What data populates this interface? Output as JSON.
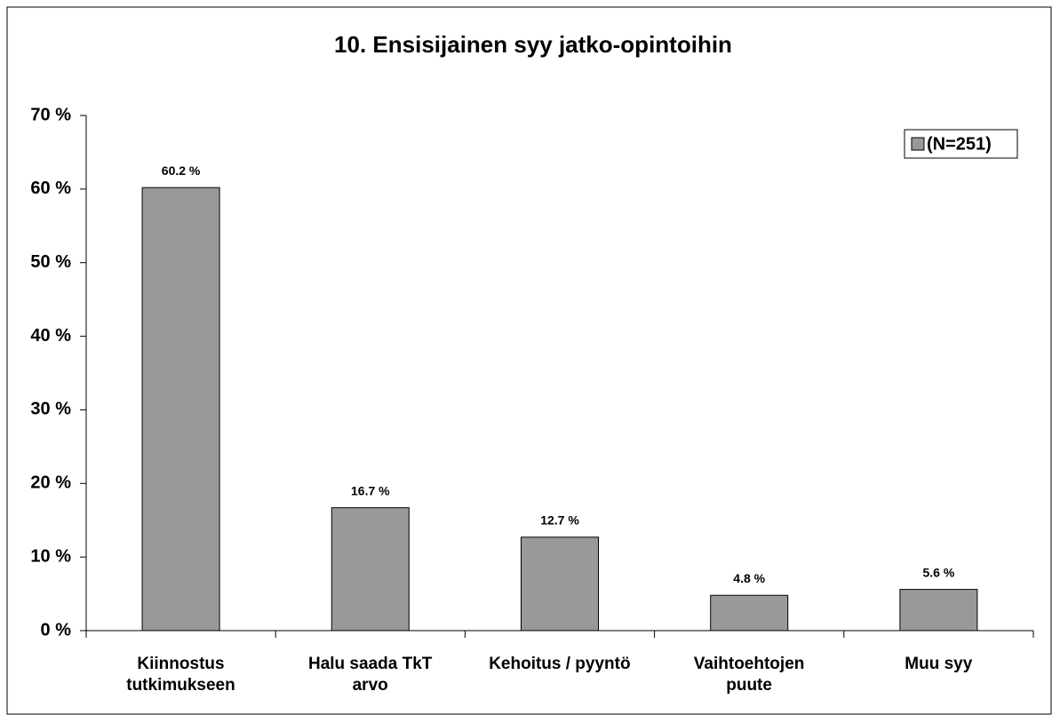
{
  "chart_data": {
    "type": "bar",
    "title": "10. Ensisijainen syy jatko-opintoihin",
    "categories": [
      "Kiinnostus\ntutkimukseen",
      "Halu  saada TkT\narvo",
      "Kehoitus / pyyntö",
      "Vaihtoehtojen\npuute",
      "Muu syy"
    ],
    "series": [
      {
        "name": "(N=251)",
        "color": "#999999",
        "values": [
          60.2,
          16.7,
          12.7,
          4.8,
          5.6
        ],
        "value_labels": [
          "60.2 %",
          "16.7 %",
          "12.7 %",
          "4.8 %",
          "5.6 %"
        ]
      }
    ],
    "ylim": [
      0,
      70
    ],
    "yticks": [
      {
        "value": 0,
        "label": "0 %"
      },
      {
        "value": 10,
        "label": "10 %"
      },
      {
        "value": 20,
        "label": "20 %"
      },
      {
        "value": 30,
        "label": "30 %"
      },
      {
        "value": 40,
        "label": "40 %"
      },
      {
        "value": 50,
        "label": "50 %"
      },
      {
        "value": 60,
        "label": "60 %"
      },
      {
        "value": 70,
        "label": "70 %"
      }
    ],
    "grid": false,
    "legend": "top-right"
  }
}
